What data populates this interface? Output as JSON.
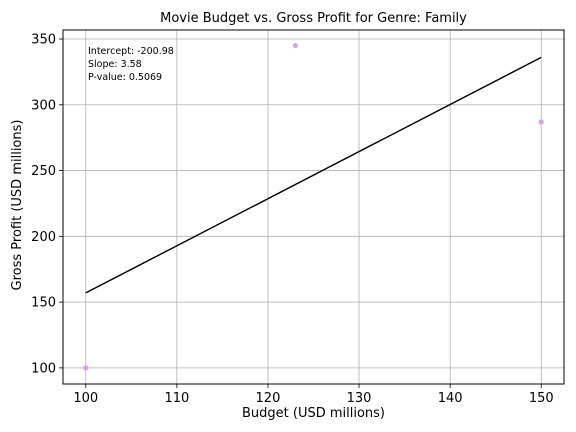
{
  "chart_data": {
    "type": "scatter",
    "title": "Movie Budget vs. Gross Profit for Genre: Family",
    "xlabel": "Budget (USD millions)",
    "ylabel": "Gross Profit (USD millions)",
    "xlim": [
      97.5,
      152.5
    ],
    "ylim": [
      87.75,
      356.85
    ],
    "xticks": [
      100,
      110,
      120,
      130,
      140,
      150
    ],
    "yticks": [
      100,
      150,
      200,
      250,
      300,
      350
    ],
    "grid": true,
    "points": [
      {
        "x": 100,
        "y": 100
      },
      {
        "x": 123,
        "y": 345
      },
      {
        "x": 150,
        "y": 287
      }
    ],
    "point_color": "#d8a0e8",
    "regression": {
      "intercept": -200.98,
      "slope": 3.58,
      "x_range": [
        100,
        150
      ],
      "color": "#000000"
    },
    "annotations": [
      "Intercept: -200.98",
      "Slope: 3.58",
      "P-value: 0.5069"
    ]
  }
}
